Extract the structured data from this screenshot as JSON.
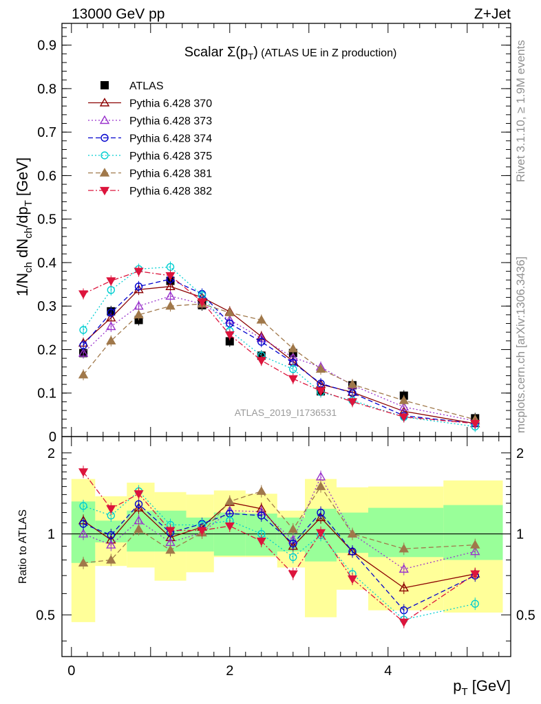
{
  "header": {
    "left": "13000 GeV pp",
    "right": "Z+Jet"
  },
  "side_labels": {
    "rivet": "Rivet 3.1.10, ≥ 1.9M events",
    "mcplots": "mcplots.cern.ch [arXiv:1306.3436]"
  },
  "chart_data": [
    {
      "type": "scatter",
      "title": "Scalar Σ(p_T) (ATLAS UE in Z production)",
      "ylabel": "1/N_ch dN_ch/dp_T [GeV]",
      "watermark": "ATLAS_2019_I1736531",
      "xlim": [
        -0.12,
        5.55
      ],
      "ylim": [
        0,
        0.95
      ],
      "yticks": [
        "0",
        "0.1",
        "0.2",
        "0.3",
        "0.4",
        "0.5",
        "0.6",
        "0.7",
        "0.8",
        "0.9"
      ],
      "legend_position": "top-left",
      "x": [
        0.15,
        0.5,
        0.85,
        1.25,
        1.65,
        2.0,
        2.4,
        2.8,
        3.15,
        3.55,
        4.2,
        5.1
      ],
      "series": [
        {
          "name": "ATLAS",
          "color": "#000000",
          "marker": "square",
          "line": "none",
          "values": [
            0.192,
            0.288,
            0.268,
            0.358,
            0.302,
            0.219,
            0.186,
            0.192,
            0.104,
            0.118,
            0.094,
            0.042
          ]
        },
        {
          "name": "Pythia 6.428 370",
          "color": "#8b0000",
          "marker": "triangle-open",
          "line": "solid",
          "values": [
            0.215,
            0.273,
            0.338,
            0.345,
            0.32,
            0.287,
            0.23,
            0.173,
            0.12,
            0.102,
            0.058,
            0.03
          ]
        },
        {
          "name": "Pythia 6.428 373",
          "color": "#9932cc",
          "marker": "triangle-open",
          "line": "dotted",
          "values": [
            0.192,
            0.253,
            0.3,
            0.323,
            0.305,
            0.268,
            0.226,
            0.182,
            0.16,
            0.118,
            0.068,
            0.036
          ]
        },
        {
          "name": "Pythia 6.428 374",
          "color": "#0000cd",
          "marker": "circle-open",
          "line": "dashed",
          "values": [
            0.21,
            0.285,
            0.345,
            0.362,
            0.328,
            0.26,
            0.218,
            0.17,
            0.122,
            0.1,
            0.048,
            0.03
          ]
        },
        {
          "name": "Pythia 6.428 375",
          "color": "#00ced1",
          "marker": "circle-open",
          "line": "dotted",
          "values": [
            0.245,
            0.337,
            0.385,
            0.39,
            0.325,
            0.243,
            0.186,
            0.155,
            0.102,
            0.083,
            0.045,
            0.023
          ]
        },
        {
          "name": "Pythia 6.428 381",
          "color": "#a0784a",
          "marker": "triangle",
          "line": "dashed",
          "values": [
            0.142,
            0.22,
            0.28,
            0.3,
            0.305,
            0.285,
            0.268,
            0.202,
            0.155,
            0.12,
            0.083,
            0.039
          ]
        },
        {
          "name": "Pythia 6.428 382",
          "color": "#dc143c",
          "marker": "triangle-down",
          "line": "dashdot",
          "values": [
            0.328,
            0.358,
            0.38,
            0.37,
            0.31,
            0.234,
            0.175,
            0.133,
            0.105,
            0.08,
            0.045,
            0.03
          ]
        }
      ]
    },
    {
      "type": "scatter",
      "ylabel": "Ratio to ATLAS",
      "xlabel": "p_T [GeV]",
      "ylim": [
        0.35,
        2.3
      ],
      "scale": "log",
      "yticks": [
        "0.5",
        "1",
        "2"
      ],
      "xticks": [
        "0",
        "2",
        "4"
      ],
      "reference_line": 1,
      "bands": {
        "edges": [
          0,
          0.3,
          0.7,
          1.05,
          1.45,
          1.8,
          2.2,
          2.6,
          2.95,
          3.35,
          3.75,
          4.7,
          5.45
        ],
        "green_low": [
          0.78,
          0.93,
          0.86,
          0.86,
          0.86,
          0.83,
          0.83,
          0.86,
          0.79,
          0.85,
          0.82,
          0.8
        ],
        "green_high": [
          1.32,
          1.12,
          1.22,
          1.22,
          1.15,
          1.2,
          1.19,
          1.15,
          1.24,
          1.2,
          1.25,
          1.28
        ],
        "yellow_low": [
          0.47,
          0.76,
          0.75,
          0.67,
          0.72,
          0.82,
          0.82,
          0.75,
          0.49,
          0.62,
          0.52,
          0.51
        ],
        "yellow_high": [
          1.6,
          1.38,
          1.55,
          1.43,
          1.4,
          1.45,
          1.41,
          1.22,
          1.6,
          1.49,
          1.5,
          1.58
        ]
      },
      "series": [
        {
          "name": "Pythia 6.428 370",
          "values": [
            1.12,
            0.95,
            1.25,
            0.97,
            1.06,
            1.31,
            1.24,
            0.9,
            1.15,
            0.86,
            0.63,
            0.71
          ]
        },
        {
          "name": "Pythia 6.428 373",
          "values": [
            1.0,
            0.91,
            1.12,
            0.93,
            1.01,
            1.22,
            1.21,
            0.95,
            1.63,
            1.0,
            0.74,
            0.86
          ]
        },
        {
          "name": "Pythia 6.428 374",
          "values": [
            1.09,
            0.99,
            1.29,
            1.01,
            1.09,
            1.19,
            1.17,
            0.92,
            1.2,
            0.86,
            0.52,
            0.7
          ]
        },
        {
          "name": "Pythia 6.428 375",
          "values": [
            1.27,
            1.17,
            1.44,
            1.08,
            1.08,
            1.12,
            1.0,
            0.82,
            0.99,
            0.71,
            0.48,
            0.55
          ]
        },
        {
          "name": "Pythia 6.428 381",
          "values": [
            0.78,
            0.8,
            1.04,
            0.87,
            1.01,
            1.32,
            1.44,
            1.04,
            1.5,
            1.0,
            0.88,
            0.91
          ]
        },
        {
          "name": "Pythia 6.428 382",
          "values": [
            1.7,
            1.24,
            1.41,
            1.03,
            1.03,
            1.07,
            0.94,
            0.71,
            1.01,
            0.68,
            0.47,
            0.71
          ]
        }
      ]
    }
  ]
}
